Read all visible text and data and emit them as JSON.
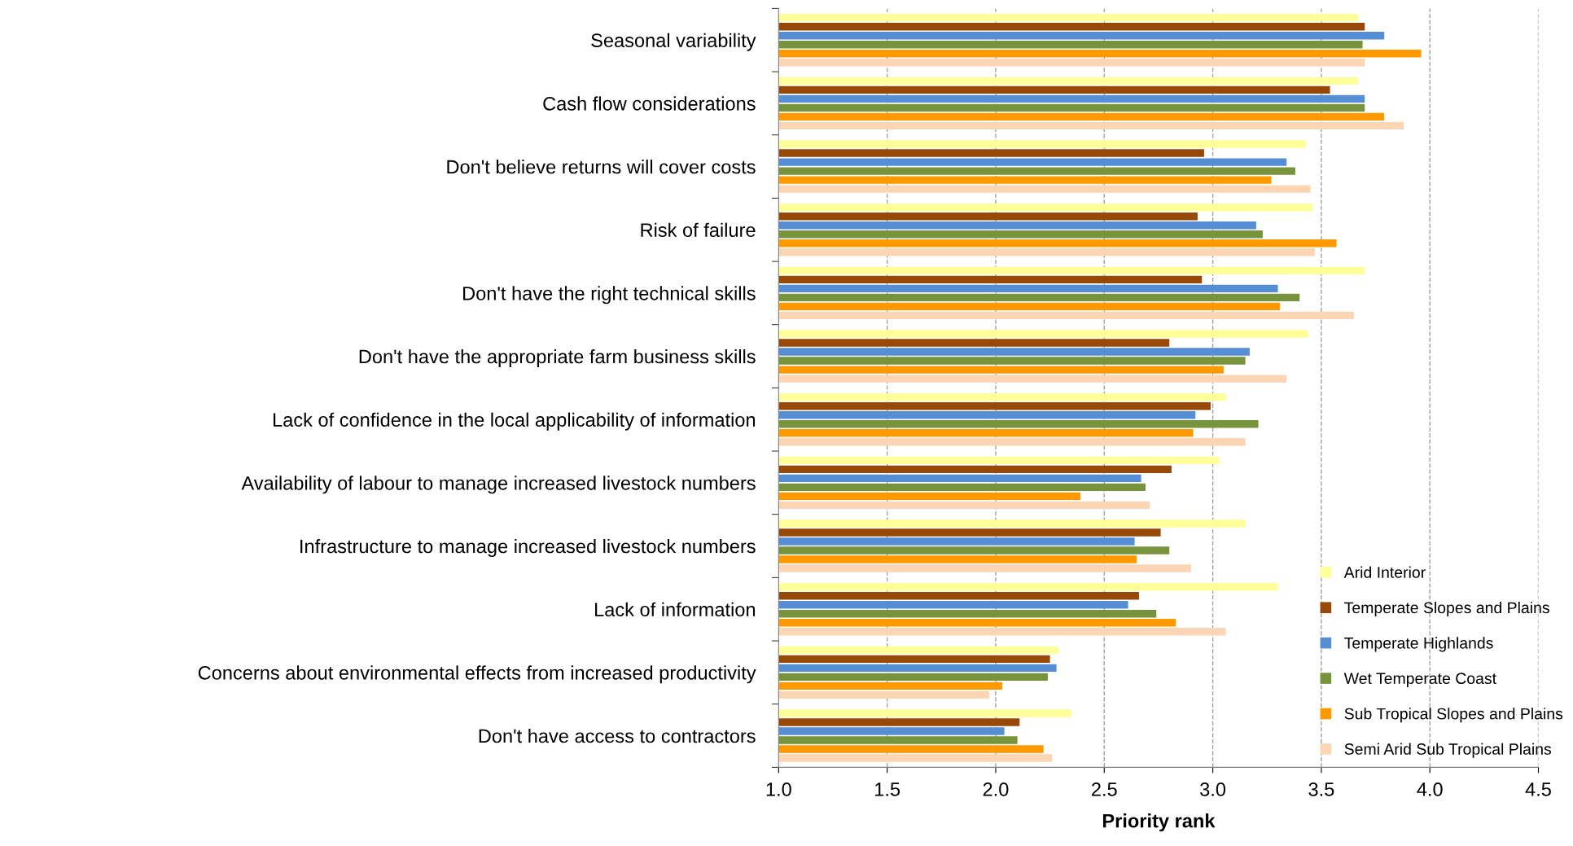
{
  "chart_data": {
    "type": "bar",
    "orientation": "horizontal",
    "xlabel": "Priority rank",
    "xlim": [
      1.0,
      4.5
    ],
    "xticks": [
      {
        "value": 1.0,
        "label": "1.0"
      },
      {
        "value": 1.5,
        "label": "1.5"
      },
      {
        "value": 2.0,
        "label": "2.0"
      },
      {
        "value": 2.5,
        "label": "2.5"
      },
      {
        "value": 3.0,
        "label": "3.0"
      },
      {
        "value": 3.5,
        "label": "3.5"
      },
      {
        "value": 4.0,
        "label": "4.0"
      },
      {
        "value": 4.5,
        "label": "4.5"
      }
    ],
    "grid": "x",
    "legend": "right",
    "categories": [
      "Seasonal variability",
      "Cash flow considerations",
      "Don't believe returns will cover costs",
      "Risk of failure",
      "Don't have the right technical skills",
      "Don't have the appropriate farm business skills",
      "Lack of confidence in the local applicability of information",
      "Availability of labour to manage increased livestock numbers",
      "Infrastructure to manage increased livestock numbers",
      "Lack of information",
      "Concerns about environmental effects from increased productivity",
      "Don't have access to contractors"
    ],
    "series": [
      {
        "name": "Arid Interior",
        "color": "#ffff99",
        "values": [
          3.67,
          3.67,
          3.43,
          3.46,
          3.7,
          3.44,
          3.06,
          3.03,
          3.15,
          3.3,
          2.29,
          2.35
        ]
      },
      {
        "name": "Temperate Slopes and Plains",
        "color": "#984807",
        "values": [
          3.7,
          3.54,
          2.96,
          2.93,
          2.95,
          2.8,
          2.99,
          2.81,
          2.76,
          2.66,
          2.25,
          2.11
        ]
      },
      {
        "name": "Temperate Highlands",
        "color": "#558ed5",
        "values": [
          3.79,
          3.7,
          3.34,
          3.2,
          3.3,
          3.17,
          2.92,
          2.67,
          2.64,
          2.61,
          2.28,
          2.04
        ]
      },
      {
        "name": "Wet Temperate Coast",
        "color": "#77933c",
        "values": [
          3.69,
          3.7,
          3.38,
          3.23,
          3.4,
          3.15,
          3.21,
          2.69,
          2.8,
          2.74,
          2.24,
          2.1
        ]
      },
      {
        "name": "Sub Tropical Slopes and Plains",
        "color": "#ff9900",
        "values": [
          3.96,
          3.79,
          3.27,
          3.57,
          3.31,
          3.05,
          2.91,
          2.39,
          2.65,
          2.83,
          2.03,
          2.22
        ]
      },
      {
        "name": "Semi Arid Sub Tropical Plains",
        "color": "#fcd5b5",
        "values": [
          3.7,
          3.88,
          3.45,
          3.47,
          3.65,
          3.34,
          3.15,
          2.71,
          2.9,
          3.06,
          1.97,
          2.26
        ]
      }
    ]
  }
}
